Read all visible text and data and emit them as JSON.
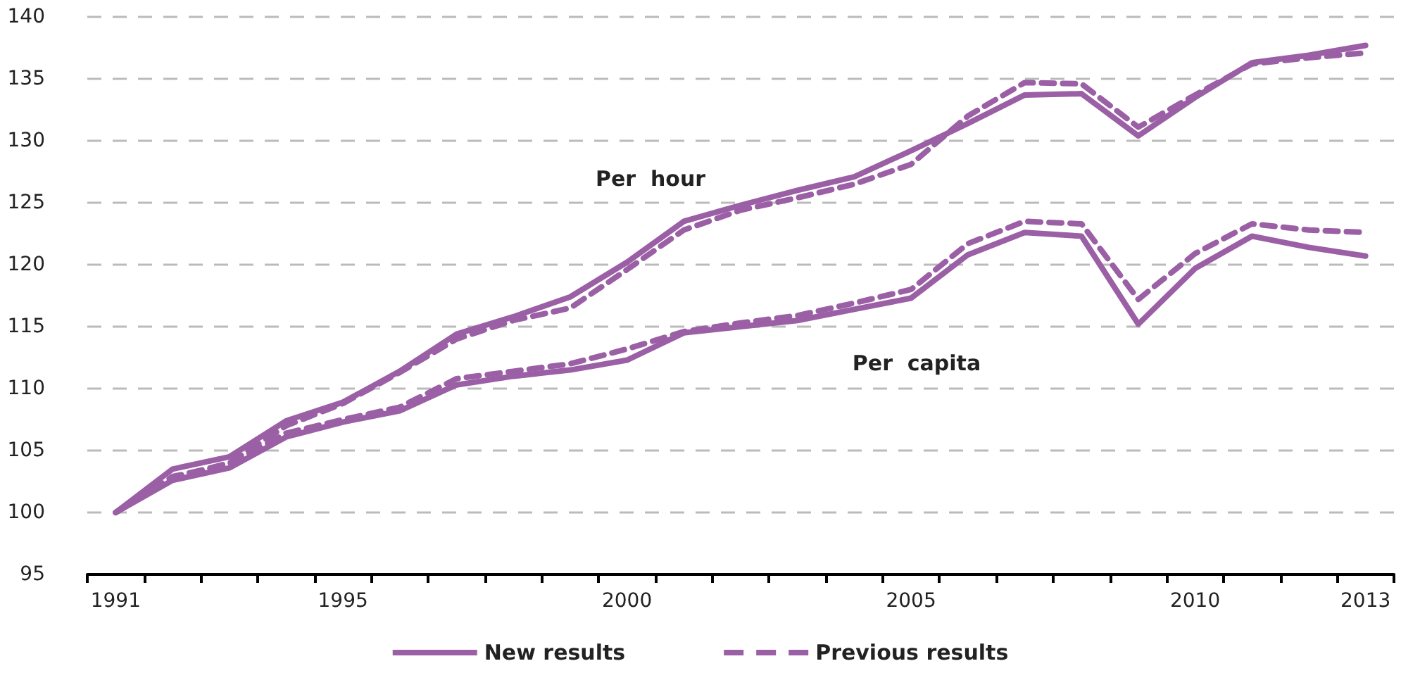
{
  "chart_data": {
    "type": "line",
    "categories": [
      "1991",
      null,
      null,
      null,
      "1995",
      null,
      null,
      null,
      null,
      "2000",
      null,
      null,
      null,
      null,
      "2005",
      null,
      null,
      null,
      null,
      "2010",
      null,
      null,
      "2013"
    ],
    "series": [
      {
        "name": "New results",
        "color": "#9b5fa5",
        "line_style": "solid",
        "values": [
          100,
          103.5,
          104.5,
          107.4,
          108.9,
          111.4,
          114.4,
          115.8,
          117.4,
          120.2,
          123.5,
          124.8,
          126,
          127.1,
          129.2,
          131.4,
          133.7,
          133.8,
          130.4,
          133.5,
          136.3,
          136.9,
          137.7
        ]
      },
      {
        "name": "Previous results",
        "color": "#9b5fa5",
        "line_style": "dashed",
        "values": [
          100,
          102.8,
          104,
          107,
          108.8,
          111.3,
          114,
          115.5,
          116.5,
          119.6,
          122.8,
          124.4,
          125.4,
          126.5,
          128.1,
          132,
          134.7,
          134.6,
          131.1,
          133.7,
          136.2,
          136.7,
          137.1
        ]
      },
      {
        "color": "#9b5fa5",
        "line_style": "solid",
        "values": [
          100,
          102.6,
          103.6,
          106.1,
          107.3,
          108.2,
          110.3,
          111,
          111.5,
          112.3,
          114.5,
          115,
          115.5,
          116.4,
          117.3,
          120.8,
          122.6,
          122.3,
          115.2,
          119.7,
          122.3,
          121.4,
          120.7
        ]
      },
      {
        "color": "#9b5fa5",
        "line_style": "dashed",
        "values": [
          100,
          102.9,
          103.9,
          106.4,
          107.5,
          108.5,
          110.8,
          111.4,
          112,
          113.2,
          114.6,
          115.3,
          115.9,
          116.9,
          118,
          121.7,
          123.5,
          123.3,
          117.2,
          120.9,
          123.3,
          122.8,
          122.6
        ]
      }
    ],
    "annotations": [
      "Per  hour",
      "Per  capita"
    ],
    "ylim": [
      95,
      140
    ],
    "yticks": [
      95,
      100,
      105,
      110,
      115,
      120,
      125,
      130,
      135,
      140
    ],
    "grid": "y",
    "legend": "bottom",
    "marker": "none"
  }
}
